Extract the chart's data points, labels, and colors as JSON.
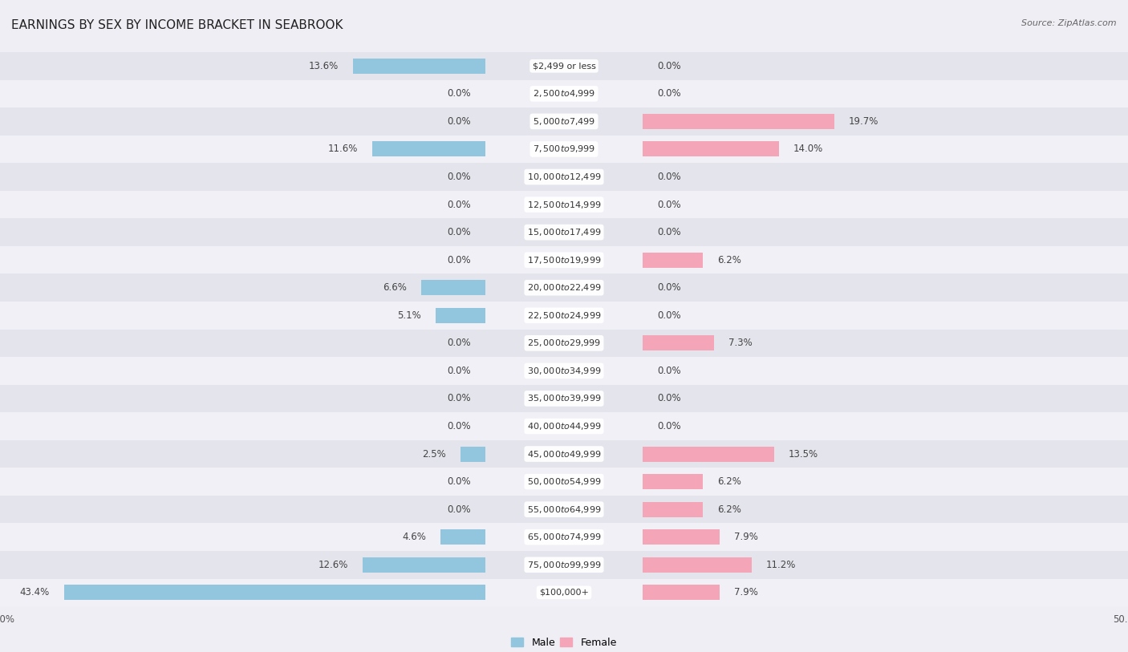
{
  "title": "EARNINGS BY SEX BY INCOME BRACKET IN SEABROOK",
  "source": "Source: ZipAtlas.com",
  "categories": [
    "$2,499 or less",
    "$2,500 to $4,999",
    "$5,000 to $7,499",
    "$7,500 to $9,999",
    "$10,000 to $12,499",
    "$12,500 to $14,999",
    "$15,000 to $17,499",
    "$17,500 to $19,999",
    "$20,000 to $22,499",
    "$22,500 to $24,999",
    "$25,000 to $29,999",
    "$30,000 to $34,999",
    "$35,000 to $39,999",
    "$40,000 to $44,999",
    "$45,000 to $49,999",
    "$50,000 to $54,999",
    "$55,000 to $64,999",
    "$65,000 to $74,999",
    "$75,000 to $99,999",
    "$100,000+"
  ],
  "male_values": [
    13.6,
    0.0,
    0.0,
    11.6,
    0.0,
    0.0,
    0.0,
    0.0,
    6.6,
    5.1,
    0.0,
    0.0,
    0.0,
    0.0,
    2.5,
    0.0,
    0.0,
    4.6,
    12.6,
    43.4
  ],
  "female_values": [
    0.0,
    0.0,
    19.7,
    14.0,
    0.0,
    0.0,
    0.0,
    6.2,
    0.0,
    0.0,
    7.3,
    0.0,
    0.0,
    0.0,
    13.5,
    6.2,
    6.2,
    7.9,
    11.2,
    7.9
  ],
  "male_color": "#92c5de",
  "female_color": "#f4a6b8",
  "axis_limit": 50.0,
  "bar_height": 0.55,
  "bg_color": "#eeeef4",
  "row_color_a": "#e4e4ed",
  "row_color_b": "#f0f0f6",
  "title_fontsize": 11,
  "label_fontsize": 8.5,
  "category_fontsize": 8.0,
  "legend_fontsize": 9,
  "source_fontsize": 8
}
